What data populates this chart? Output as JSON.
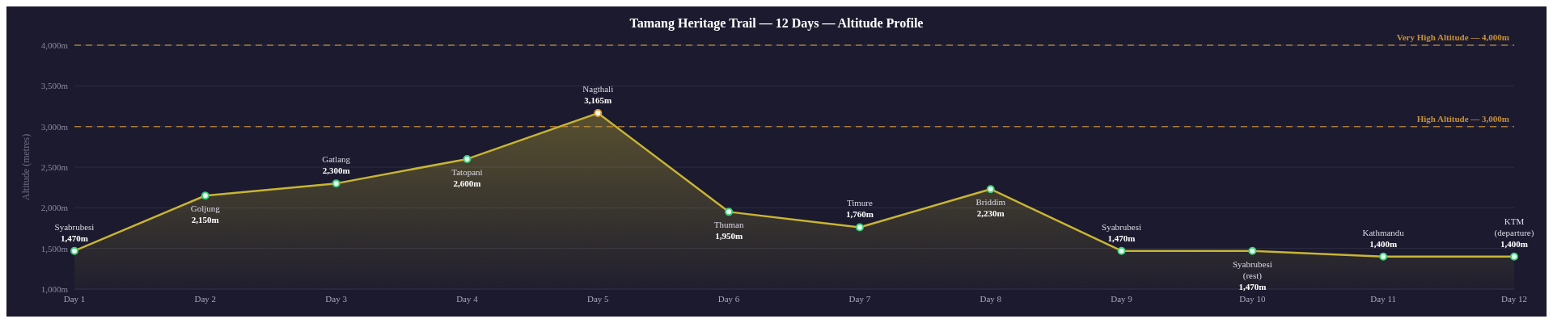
{
  "chart_data": {
    "type": "area",
    "title": "Tamang Heritage Trail — 12 Days — Altitude Profile",
    "ylabel": "Altitude (metres)",
    "categories": [
      "Day 1",
      "Day 2",
      "Day 3",
      "Day 4",
      "Day 5",
      "Day 6",
      "Day 7",
      "Day 8",
      "Day 9",
      "Day 10",
      "Day 11",
      "Day 12"
    ],
    "series": [
      {
        "color": "#c9b533",
        "values": [
          1470,
          2150,
          2300,
          2600,
          3165,
          1950,
          1760,
          2230,
          1470,
          1470,
          1400,
          1400
        ],
        "colors": [
          "#3ecf7a",
          "#3ecf7a",
          "#3ecf7a",
          "#3ecf7a",
          "#e8a33a",
          "#3ecf7a",
          "#3ecf7a",
          "#3ecf7a",
          "#3ecf7a",
          "#3ecf7a",
          "#3ecf7a",
          "#3ecf7a"
        ],
        "value_labels": [
          "1,470m",
          "2,150m",
          "2,300m",
          "2,600m",
          "3,165m",
          "1,950m",
          "1,760m",
          "2,230m",
          "1,470m",
          "1,470m",
          "1,400m",
          "1,400m"
        ]
      }
    ],
    "annotations": [
      {
        "text": "Syabrubesi",
        "x": "Day 1",
        "y": 1470
      },
      {
        "text": "Goljung",
        "x": "Day 2",
        "y": 2150
      },
      {
        "text": "Gatlang",
        "x": "Day 3",
        "y": 2300
      },
      {
        "text": "Tatopani",
        "x": "Day 4",
        "y": 2600
      },
      {
        "text": "Nagthali",
        "x": "Day 5",
        "y": 3165
      },
      {
        "text": "Thuman",
        "x": "Day 6",
        "y": 1950
      },
      {
        "text": "Timure",
        "x": "Day 7",
        "y": 1760
      },
      {
        "text": "Briddim",
        "x": "Day 8",
        "y": 2230
      },
      {
        "text": "Syabrubesi",
        "x": "Day 9",
        "y": 1470
      },
      {
        "text": "Syabrubesi (rest)",
        "x": "Day 10",
        "y": 1470
      },
      {
        "text": "Kathmandu",
        "x": "Day 11",
        "y": 1400
      },
      {
        "text": "KTM (departure)",
        "x": "Day 12",
        "y": 1400
      }
    ],
    "ref_lines": [
      {
        "axis": "y",
        "value": 4000,
        "label": "Very High Altitude — 4,000m",
        "color": "#c8913a",
        "line_style": "dashed"
      },
      {
        "axis": "y",
        "value": 3000,
        "label": "High Altitude — 3,000m",
        "color": "#c8913a",
        "line_style": "dashed"
      }
    ],
    "ylim": [
      1000,
      4000
    ],
    "yticks": [
      {
        "value": 1000,
        "label": "1,000m"
      },
      {
        "value": 1500,
        "label": "1,500m"
      },
      {
        "value": 2000,
        "label": "2,000m"
      },
      {
        "value": 2500,
        "label": "2,500m"
      },
      {
        "value": 3000,
        "label": "3,000m"
      },
      {
        "value": 3500,
        "label": "3,500m"
      },
      {
        "value": 4000,
        "label": "4,000m"
      }
    ],
    "grid": "y",
    "marker": "circle",
    "legend": false
  }
}
